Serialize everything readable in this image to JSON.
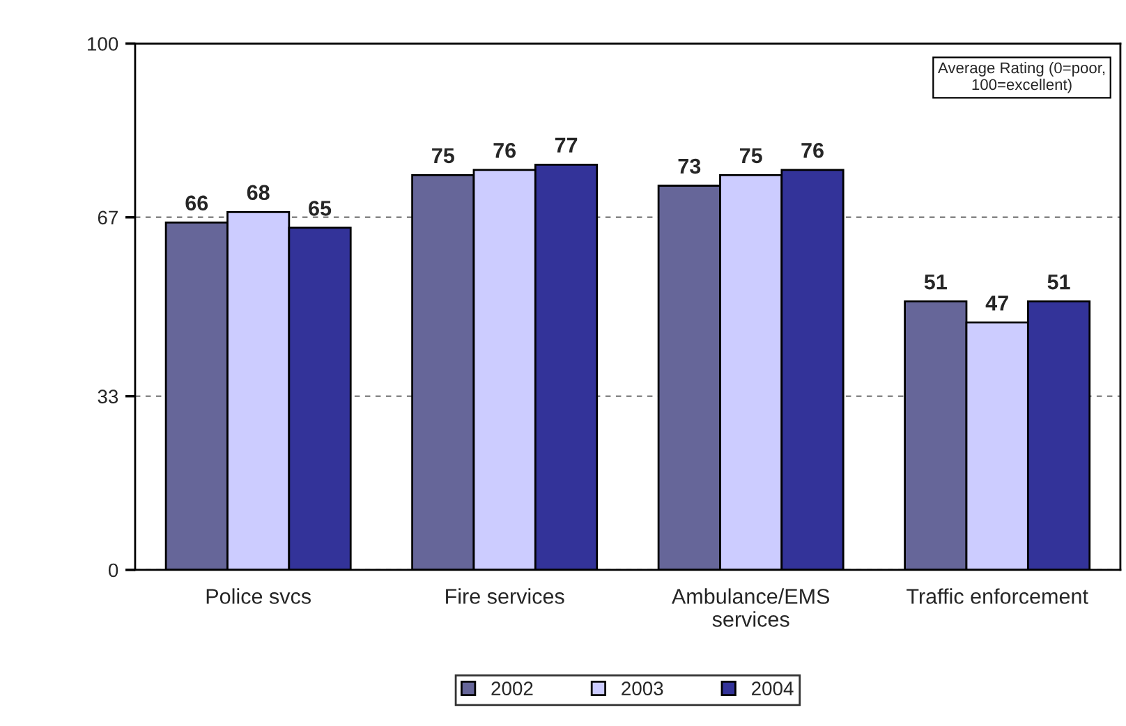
{
  "chart_data": {
    "type": "bar",
    "categories": [
      "Police svcs",
      "Fire services",
      "Ambulance/EMS\nservices",
      "Traffic enforcement"
    ],
    "series": [
      {
        "name": "2002",
        "color": "#666699",
        "values": [
          66,
          75,
          73,
          51
        ]
      },
      {
        "name": "2003",
        "color": "#ccccff",
        "values": [
          68,
          76,
          75,
          47
        ]
      },
      {
        "name": "2004",
        "color": "#333399",
        "values": [
          65,
          77,
          76,
          51
        ]
      }
    ],
    "ylim": [
      0,
      100
    ],
    "yticks": [
      0,
      33,
      67,
      100
    ],
    "grid": "y",
    "data_labels": true,
    "legend": "bottom",
    "annotations": [
      "Average Rating (0=poor, 100=excellent)"
    ]
  }
}
